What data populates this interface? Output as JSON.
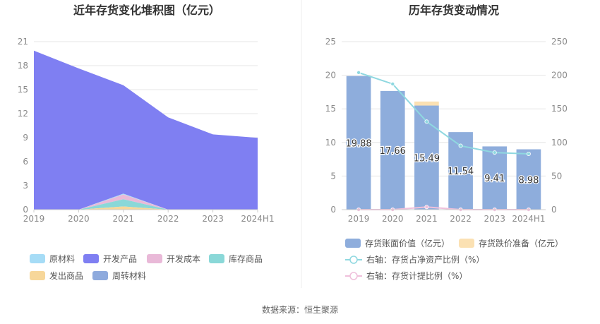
{
  "source_label": "数据来源：恒生聚源",
  "chart_data": [
    {
      "type": "area",
      "title": "近年存货变化堆积图（亿元）",
      "x": [
        "2019",
        "2020",
        "2021",
        "2022",
        "2023",
        "2024H1"
      ],
      "ylim": [
        0,
        21
      ],
      "yticks": [
        0,
        3,
        6,
        9,
        12,
        15,
        18,
        21
      ],
      "stacked": true,
      "grid": true,
      "series": [
        {
          "name": "原材料",
          "color": "#a6dcf6",
          "values": [
            0,
            0,
            0.1,
            0,
            0,
            0
          ]
        },
        {
          "name": "开发产品",
          "color": "#7f7ff2",
          "values": [
            19.88,
            17.66,
            13.55,
            11.54,
            9.41,
            8.98
          ]
        },
        {
          "name": "开发成本",
          "color": "#e9b9d8",
          "values": [
            0,
            0,
            0.6,
            0,
            0,
            0
          ]
        },
        {
          "name": "库存商品",
          "color": "#8ad8d8",
          "values": [
            0,
            0,
            0.9,
            0,
            0,
            0
          ]
        },
        {
          "name": "发出商品",
          "color": "#f7d79a",
          "values": [
            0,
            0,
            0.4,
            0,
            0,
            0
          ]
        },
        {
          "name": "周转材料",
          "color": "#8eaadd",
          "values": [
            0,
            0,
            0,
            0,
            0,
            0
          ]
        }
      ],
      "legend_position": "bottom"
    },
    {
      "type": "bar",
      "title": "历年存货变动情况",
      "categories": [
        "2019",
        "2020",
        "2021",
        "2022",
        "2023",
        "2024H1"
      ],
      "ylim": [
        0,
        25
      ],
      "yticks": [
        0,
        5,
        10,
        15,
        20,
        25
      ],
      "y2lim": [
        0,
        250
      ],
      "y2ticks": [
        0,
        50,
        100,
        150,
        200,
        250
      ],
      "grid": true,
      "series": [
        {
          "name": "存货账面价值（亿元）",
          "kind": "bar",
          "axis": "left",
          "color": "#8eaddc",
          "values": [
            19.88,
            17.66,
            15.49,
            11.54,
            9.41,
            8.98
          ],
          "labels": [
            "19.88",
            "17.66",
            "15.49",
            "11.54",
            "9.41",
            "8.98"
          ]
        },
        {
          "name": "存货跌价准备（亿元）",
          "kind": "bar",
          "axis": "left",
          "color": "#fbe1b3",
          "values": [
            0,
            0,
            0.6,
            0,
            0,
            0
          ]
        },
        {
          "name": "右轴：存货占净资产比例（%）",
          "kind": "line",
          "axis": "right",
          "color": "#8fd8e0",
          "values": [
            204,
            187,
            131,
            95,
            85,
            83
          ]
        },
        {
          "name": "右轴：存货计提比例（%）",
          "kind": "line",
          "axis": "right",
          "color": "#efc0db",
          "values": [
            0,
            0,
            4,
            0,
            0,
            0
          ]
        }
      ],
      "legend_position": "bottom"
    }
  ]
}
